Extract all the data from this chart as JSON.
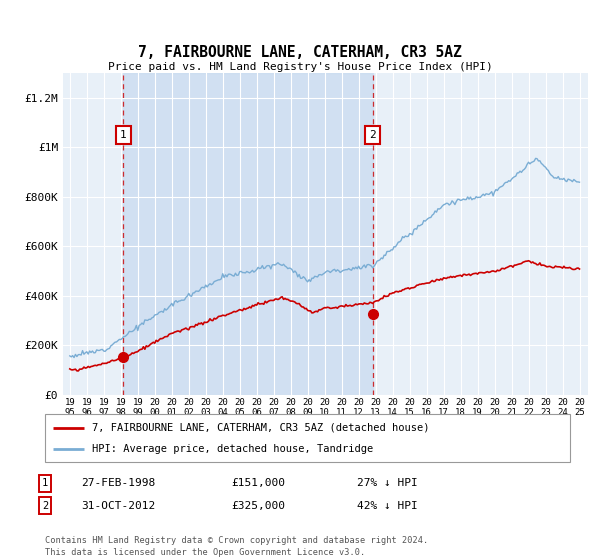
{
  "title": "7, FAIRBOURNE LANE, CATERHAM, CR3 5AZ",
  "subtitle": "Price paid vs. HM Land Registry's House Price Index (HPI)",
  "hpi_label": "HPI: Average price, detached house, Tandridge",
  "property_label": "7, FAIRBOURNE LANE, CATERHAM, CR3 5AZ (detached house)",
  "sale1_date": "27-FEB-1998",
  "sale1_price": 151000,
  "sale1_note": "27% ↓ HPI",
  "sale2_date": "31-OCT-2012",
  "sale2_price": 325000,
  "sale2_note": "42% ↓ HPI",
  "footer": "Contains HM Land Registry data © Crown copyright and database right 2024.\nThis data is licensed under the Open Government Licence v3.0.",
  "hpi_color": "#7aadd4",
  "property_color": "#cc0000",
  "dashed_color": "#cc0000",
  "background_color": "#e8f0f8",
  "shade_color": "#c8daf0",
  "ylim": [
    0,
    1300000
  ],
  "yticks": [
    0,
    200000,
    400000,
    600000,
    800000,
    1000000,
    1200000
  ],
  "ytick_labels": [
    "£0",
    "£200K",
    "£400K",
    "£600K",
    "£800K",
    "£1M",
    "£1.2M"
  ],
  "sale1_year": 1998.16,
  "sale2_year": 2012.83
}
